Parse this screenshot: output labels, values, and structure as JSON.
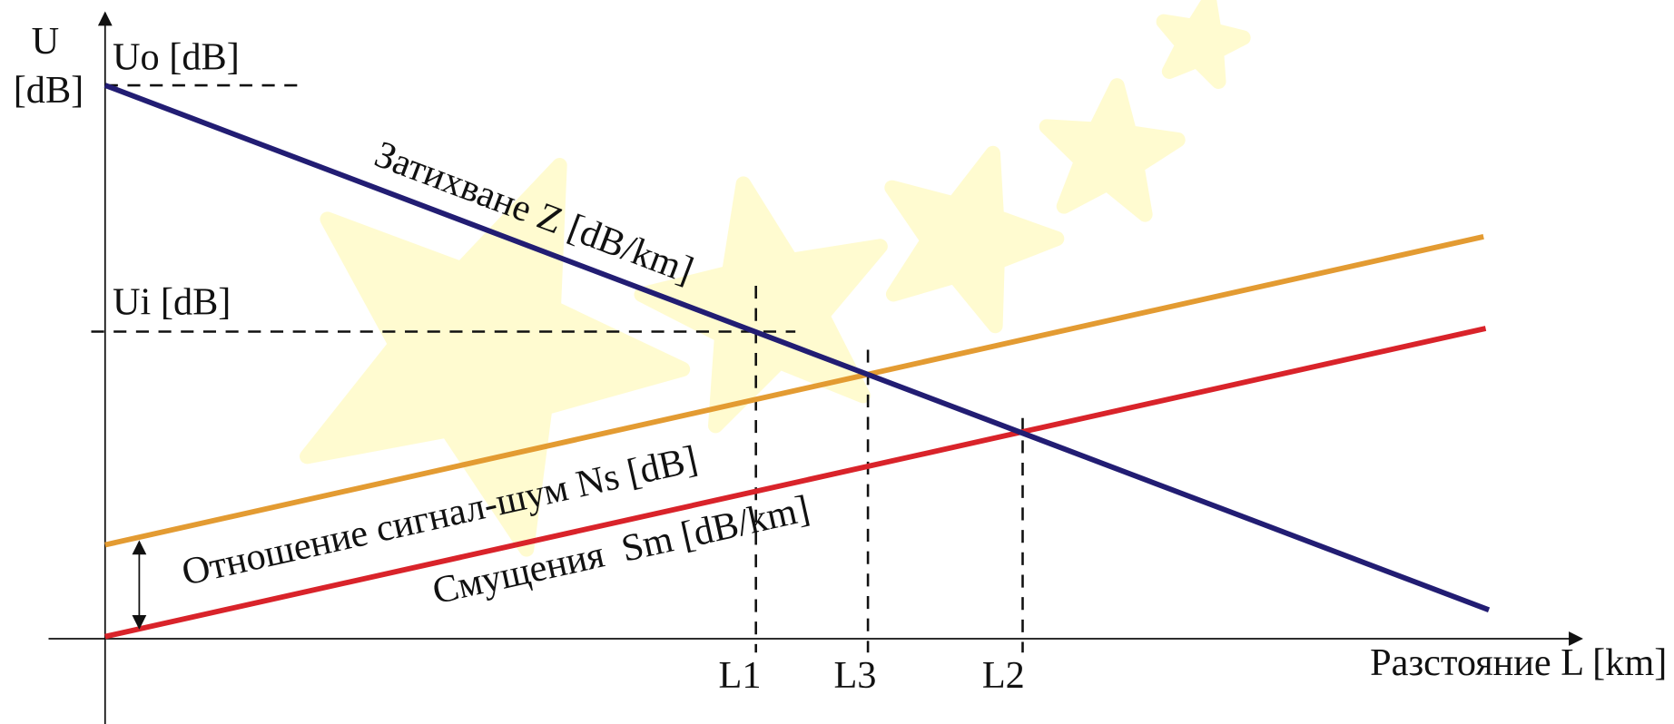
{
  "axes": {
    "y_label_line1": "U",
    "y_label_line2": "[dB]",
    "x_label": "Разстояние L [km]"
  },
  "levels": {
    "uo": "Uo [dB]",
    "ui": "Ui [dB]"
  },
  "lines": {
    "attenuation": "Затихване Z [dB/km]",
    "snr": "Отношение сигнал-шум Ns [dB]",
    "interference": "Смущения  Sm [dB/km]"
  },
  "markers": [
    "L1",
    "L3",
    "L2"
  ]
}
